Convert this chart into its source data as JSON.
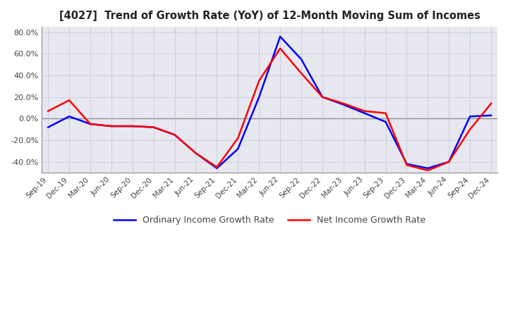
{
  "title": "[4027]  Trend of Growth Rate (YoY) of 12-Month Moving Sum of Incomes",
  "line1_label": "Ordinary Income Growth Rate",
  "line1_color": "#0000FF",
  "line2_label": "Net Income Growth Rate",
  "line2_color": "#FF0000",
  "background_color": "#FFFFFF",
  "plot_bg_color": "#E8E8F0",
  "grid_color": "#AAAACC",
  "ylim": [
    -50,
    85
  ],
  "yticks": [
    -40,
    -20,
    0,
    20,
    40,
    60,
    80
  ],
  "x_labels": [
    "Sep-19",
    "Dec-19",
    "Mar-20",
    "Jun-20",
    "Sep-20",
    "Dec-20",
    "Mar-21",
    "Jun-21",
    "Sep-21",
    "Dec-21",
    "Mar-22",
    "Jun-22",
    "Sep-22",
    "Dec-22",
    "Mar-23",
    "Jun-23",
    "Sep-23",
    "Dec-23",
    "Mar-24",
    "Jun-24",
    "Sep-24",
    "Dec-24"
  ],
  "ordinary_income_growth": [
    -8.0,
    2.0,
    -5.0,
    -7.0,
    -7.0,
    -8.0,
    -15.0,
    -32.0,
    -46.0,
    -28.0,
    20.0,
    76.0,
    55.0,
    20.0,
    13.0,
    5.0,
    -3.0,
    -42.0,
    -46.0,
    -40.0,
    2.0,
    3.0
  ],
  "net_income_growth": [
    7.0,
    17.0,
    -5.0,
    -7.0,
    -7.0,
    -8.0,
    -15.0,
    -32.0,
    -45.0,
    -18.0,
    35.0,
    65.0,
    42.0,
    20.0,
    14.0,
    7.0,
    5.0,
    -43.0,
    -48.0,
    -40.0,
    -10.0,
    14.0
  ]
}
